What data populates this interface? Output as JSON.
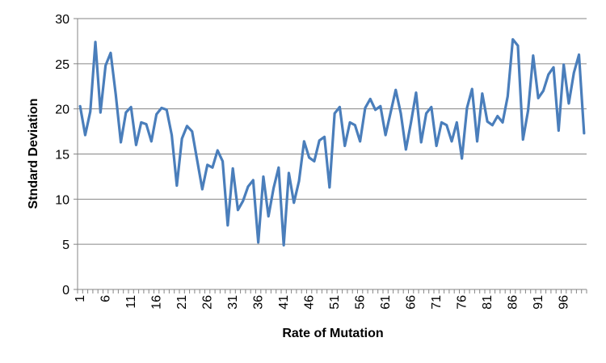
{
  "chart_data": {
    "type": "line",
    "xlabel": "Rate of Mutation",
    "ylabel": "Stndard Deviation",
    "ylim": [
      0,
      30
    ],
    "yticks": [
      0,
      5,
      10,
      15,
      20,
      25,
      30
    ],
    "xtick_labels": [
      "1",
      "6",
      "11",
      "16",
      "21",
      "26",
      "31",
      "36",
      "41",
      "46",
      "51",
      "56",
      "61",
      "66",
      "71",
      "76",
      "81",
      "86",
      "91",
      "96"
    ],
    "grid": "horizontal",
    "line_color": "#4a7ebb",
    "series": [
      {
        "values": [
          20.3,
          17.1,
          19.7,
          27.4,
          19.6,
          24.8,
          26.2,
          21.6,
          16.3,
          19.6,
          20.2,
          16.0,
          18.5,
          18.3,
          16.4,
          19.4,
          20.1,
          19.9,
          17.1,
          11.5,
          16.7,
          18.1,
          17.5,
          14.3,
          11.1,
          13.8,
          13.5,
          15.4,
          14.2,
          7.1,
          13.4,
          8.8,
          9.8,
          11.4,
          12.1,
          5.2,
          12.5,
          8.1,
          11.2,
          13.5,
          4.9,
          12.9,
          9.6,
          12.0,
          16.4,
          14.6,
          14.2,
          16.5,
          16.9,
          11.3,
          19.5,
          20.2,
          15.9,
          18.5,
          18.2,
          16.4,
          20.1,
          21.1,
          19.9,
          20.3,
          17.1,
          19.6,
          22.1,
          19.5,
          15.5,
          18.5,
          21.8,
          16.3,
          19.5,
          20.2,
          15.9,
          18.5,
          18.2,
          16.4,
          18.5,
          14.5,
          20.1,
          22.2,
          16.4,
          21.7,
          18.6,
          18.2,
          19.2,
          18.5,
          21.4,
          27.7,
          27.0,
          16.6,
          19.8,
          25.9,
          21.2,
          22.0,
          23.8,
          24.6,
          17.6,
          24.9,
          20.6,
          24.0,
          26.0,
          17.3
        ]
      }
    ]
  }
}
